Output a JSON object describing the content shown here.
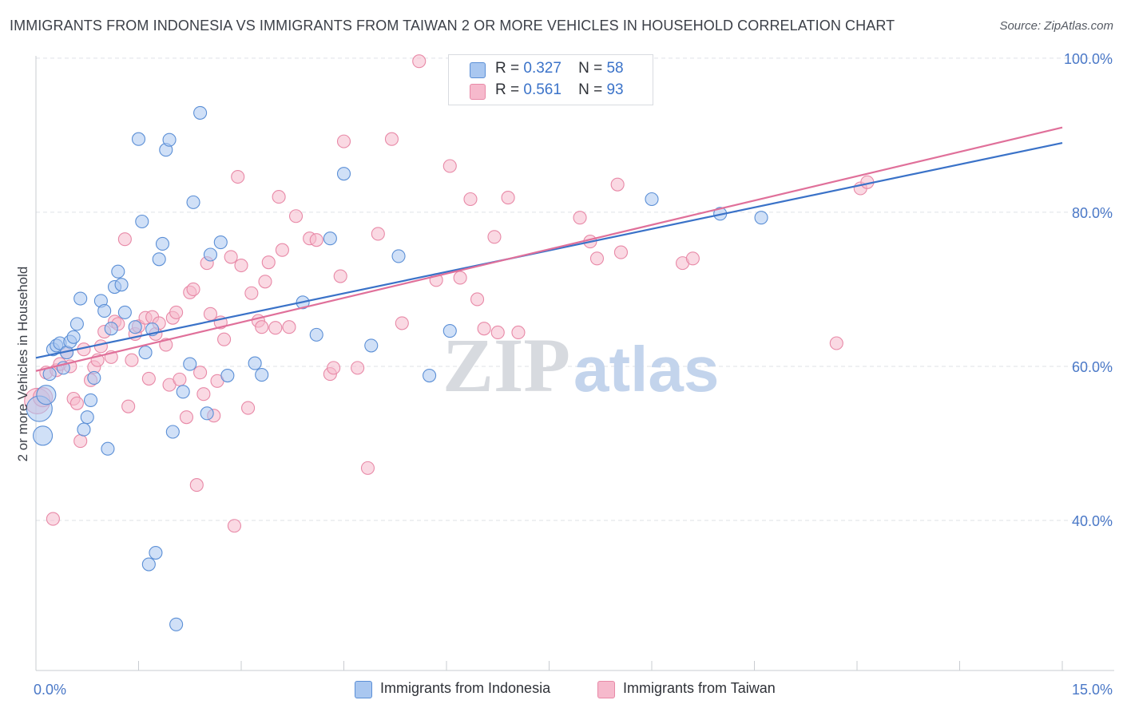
{
  "header": {
    "title": "IMMIGRANTS FROM INDONESIA VS IMMIGRANTS FROM TAIWAN 2 OR MORE VEHICLES IN HOUSEHOLD CORRELATION CHART",
    "source": "Source: ZipAtlas.com"
  },
  "legend": {
    "series1": {
      "r_label": "R =",
      "r_value": "0.327",
      "n_label": "N =",
      "n_value": "58"
    },
    "series2": {
      "r_label": "R =",
      "r_value": "0.561",
      "n_label": "N =",
      "n_value": "93"
    }
  },
  "bottom_legend": {
    "series1": "Immigrants from Indonesia",
    "series2": "Immigrants from Taiwan"
  },
  "watermark": {
    "zip": "ZIP",
    "atlas": "atlas"
  },
  "colors": {
    "indonesia_fill": "#a9c7f0",
    "indonesia_stroke": "#5b8fd6",
    "indonesia_line": "#3a72c8",
    "taiwan_fill": "#f6b9cc",
    "taiwan_stroke": "#e889a7",
    "taiwan_line": "#e0709a",
    "tick_text": "#4a78c7"
  },
  "chart_data": {
    "type": "scatter",
    "title": "IMMIGRANTS FROM INDONESIA VS IMMIGRANTS FROM TAIWAN 2 OR MORE VEHICLES IN HOUSEHOLD CORRELATION CHART",
    "xlabel": "",
    "ylabel": "2 or more Vehicles in Household",
    "xlim": [
      0,
      15
    ],
    "ylim": [
      20,
      102
    ],
    "x_tick_labels": [
      {
        "value": 0,
        "label": "0.0%"
      },
      {
        "value": 15,
        "label": "15.0%"
      }
    ],
    "y_tick_labels": [
      {
        "value": 100,
        "label": "100.0%"
      },
      {
        "value": 80,
        "label": "80.0%"
      },
      {
        "value": 60,
        "label": "60.0%"
      },
      {
        "value": 40,
        "label": "40.0%"
      }
    ],
    "grid": "horizontal dashed",
    "legend_position": "top-center",
    "series": [
      {
        "name": "Immigrants from Indonesia",
        "trend": {
          "x": [
            0,
            15
          ],
          "y": [
            61.1,
            89.0
          ]
        },
        "points": [
          {
            "x": 0.05,
            "y": 54.5,
            "s": "xl"
          },
          {
            "x": 0.1,
            "y": 51.0,
            "s": "l"
          },
          {
            "x": 0.15,
            "y": 56.3,
            "s": "l"
          },
          {
            "x": 0.2,
            "y": 59.0
          },
          {
            "x": 0.25,
            "y": 62.2
          },
          {
            "x": 0.3,
            "y": 62.7
          },
          {
            "x": 0.35,
            "y": 63.0
          },
          {
            "x": 0.4,
            "y": 59.8
          },
          {
            "x": 0.45,
            "y": 61.8
          },
          {
            "x": 0.5,
            "y": 63.2
          },
          {
            "x": 0.55,
            "y": 63.8
          },
          {
            "x": 0.6,
            "y": 65.5
          },
          {
            "x": 0.65,
            "y": 68.8
          },
          {
            "x": 0.7,
            "y": 51.8
          },
          {
            "x": 0.75,
            "y": 53.4
          },
          {
            "x": 0.8,
            "y": 55.6
          },
          {
            "x": 0.85,
            "y": 58.5
          },
          {
            "x": 0.95,
            "y": 68.5
          },
          {
            "x": 1.0,
            "y": 67.2
          },
          {
            "x": 1.05,
            "y": 49.3
          },
          {
            "x": 1.1,
            "y": 64.9
          },
          {
            "x": 1.15,
            "y": 70.3
          },
          {
            "x": 1.2,
            "y": 72.3
          },
          {
            "x": 1.25,
            "y": 70.6
          },
          {
            "x": 1.3,
            "y": 67.0
          },
          {
            "x": 1.45,
            "y": 65.1
          },
          {
            "x": 1.5,
            "y": 89.5
          },
          {
            "x": 1.55,
            "y": 78.8
          },
          {
            "x": 1.6,
            "y": 61.8
          },
          {
            "x": 1.65,
            "y": 34.3
          },
          {
            "x": 1.7,
            "y": 64.8
          },
          {
            "x": 1.75,
            "y": 35.8
          },
          {
            "x": 1.8,
            "y": 73.9
          },
          {
            "x": 1.85,
            "y": 75.9
          },
          {
            "x": 1.9,
            "y": 88.1
          },
          {
            "x": 1.95,
            "y": 89.4
          },
          {
            "x": 2.0,
            "y": 51.5
          },
          {
            "x": 2.05,
            "y": 26.5
          },
          {
            "x": 2.15,
            "y": 56.7
          },
          {
            "x": 2.25,
            "y": 60.3
          },
          {
            "x": 2.3,
            "y": 81.3
          },
          {
            "x": 2.4,
            "y": 92.9
          },
          {
            "x": 2.5,
            "y": 53.9
          },
          {
            "x": 2.55,
            "y": 74.5
          },
          {
            "x": 2.7,
            "y": 76.1
          },
          {
            "x": 2.8,
            "y": 58.8
          },
          {
            "x": 3.2,
            "y": 60.4
          },
          {
            "x": 3.3,
            "y": 58.9
          },
          {
            "x": 3.9,
            "y": 68.3
          },
          {
            "x": 4.1,
            "y": 64.1
          },
          {
            "x": 4.3,
            "y": 76.6
          },
          {
            "x": 4.5,
            "y": 85.0
          },
          {
            "x": 4.9,
            "y": 62.7
          },
          {
            "x": 5.3,
            "y": 74.3
          },
          {
            "x": 5.75,
            "y": 58.8
          },
          {
            "x": 6.05,
            "y": 64.6
          },
          {
            "x": 9.0,
            "y": 81.7
          },
          {
            "x": 10.0,
            "y": 79.8
          },
          {
            "x": 10.6,
            "y": 79.3
          }
        ]
      },
      {
        "name": "Immigrants from Taiwan",
        "trend": {
          "x": [
            0,
            15
          ],
          "y": [
            59.4,
            91.0
          ]
        },
        "points": [
          {
            "x": 0.02,
            "y": 55.5,
            "s": "xl"
          },
          {
            "x": 0.1,
            "y": 56.0,
            "s": "l"
          },
          {
            "x": 0.15,
            "y": 59.2
          },
          {
            "x": 0.25,
            "y": 40.2
          },
          {
            "x": 0.3,
            "y": 59.5
          },
          {
            "x": 0.35,
            "y": 60.3
          },
          {
            "x": 0.45,
            "y": 61.8
          },
          {
            "x": 0.5,
            "y": 60.0
          },
          {
            "x": 0.55,
            "y": 55.8
          },
          {
            "x": 0.6,
            "y": 55.2
          },
          {
            "x": 0.65,
            "y": 50.3
          },
          {
            "x": 0.7,
            "y": 62.2
          },
          {
            "x": 0.8,
            "y": 58.2
          },
          {
            "x": 0.85,
            "y": 59.9
          },
          {
            "x": 0.9,
            "y": 60.8
          },
          {
            "x": 0.95,
            "y": 62.6
          },
          {
            "x": 1.0,
            "y": 64.5
          },
          {
            "x": 1.1,
            "y": 61.2
          },
          {
            "x": 1.15,
            "y": 65.8
          },
          {
            "x": 1.2,
            "y": 65.5
          },
          {
            "x": 1.3,
            "y": 76.5
          },
          {
            "x": 1.35,
            "y": 54.8
          },
          {
            "x": 1.4,
            "y": 60.8
          },
          {
            "x": 1.45,
            "y": 64.2
          },
          {
            "x": 1.5,
            "y": 65.2
          },
          {
            "x": 1.6,
            "y": 66.3
          },
          {
            "x": 1.65,
            "y": 58.4
          },
          {
            "x": 1.7,
            "y": 66.4
          },
          {
            "x": 1.75,
            "y": 64.2
          },
          {
            "x": 1.8,
            "y": 65.6
          },
          {
            "x": 1.9,
            "y": 62.8
          },
          {
            "x": 1.95,
            "y": 57.6
          },
          {
            "x": 2.0,
            "y": 66.3
          },
          {
            "x": 2.05,
            "y": 67.0
          },
          {
            "x": 2.1,
            "y": 58.3
          },
          {
            "x": 2.2,
            "y": 53.4
          },
          {
            "x": 2.25,
            "y": 69.6
          },
          {
            "x": 2.3,
            "y": 70.0
          },
          {
            "x": 2.35,
            "y": 44.6
          },
          {
            "x": 2.4,
            "y": 59.2
          },
          {
            "x": 2.45,
            "y": 56.4
          },
          {
            "x": 2.5,
            "y": 73.4
          },
          {
            "x": 2.55,
            "y": 66.8
          },
          {
            "x": 2.6,
            "y": 53.6
          },
          {
            "x": 2.65,
            "y": 58.1
          },
          {
            "x": 2.7,
            "y": 65.7
          },
          {
            "x": 2.75,
            "y": 63.5
          },
          {
            "x": 2.85,
            "y": 74.2
          },
          {
            "x": 2.9,
            "y": 39.3
          },
          {
            "x": 2.95,
            "y": 84.6
          },
          {
            "x": 3.0,
            "y": 73.1
          },
          {
            "x": 3.1,
            "y": 54.6
          },
          {
            "x": 3.15,
            "y": 69.5
          },
          {
            "x": 3.25,
            "y": 65.9
          },
          {
            "x": 3.3,
            "y": 65.1
          },
          {
            "x": 3.35,
            "y": 71.0
          },
          {
            "x": 3.4,
            "y": 73.5
          },
          {
            "x": 3.5,
            "y": 65.0
          },
          {
            "x": 3.55,
            "y": 82.0
          },
          {
            "x": 3.6,
            "y": 75.1
          },
          {
            "x": 3.7,
            "y": 65.1
          },
          {
            "x": 3.8,
            "y": 79.5
          },
          {
            "x": 4.0,
            "y": 76.6
          },
          {
            "x": 4.1,
            "y": 76.4
          },
          {
            "x": 4.3,
            "y": 59.0
          },
          {
            "x": 4.35,
            "y": 59.8
          },
          {
            "x": 4.45,
            "y": 71.7
          },
          {
            "x": 4.5,
            "y": 89.2
          },
          {
            "x": 4.7,
            "y": 59.8
          },
          {
            "x": 4.85,
            "y": 46.8
          },
          {
            "x": 5.0,
            "y": 77.2
          },
          {
            "x": 5.2,
            "y": 89.5
          },
          {
            "x": 5.35,
            "y": 65.6
          },
          {
            "x": 5.6,
            "y": 99.6
          },
          {
            "x": 5.85,
            "y": 71.2
          },
          {
            "x": 6.05,
            "y": 86.0
          },
          {
            "x": 6.2,
            "y": 71.5
          },
          {
            "x": 6.35,
            "y": 81.7
          },
          {
            "x": 6.45,
            "y": 68.7
          },
          {
            "x": 6.55,
            "y": 64.9
          },
          {
            "x": 6.7,
            "y": 76.8
          },
          {
            "x": 6.75,
            "y": 64.4
          },
          {
            "x": 6.9,
            "y": 81.9
          },
          {
            "x": 7.05,
            "y": 64.4
          },
          {
            "x": 7.95,
            "y": 79.3
          },
          {
            "x": 8.1,
            "y": 76.2
          },
          {
            "x": 8.2,
            "y": 74.0
          },
          {
            "x": 8.5,
            "y": 83.6
          },
          {
            "x": 8.55,
            "y": 74.8
          },
          {
            "x": 9.45,
            "y": 73.4
          },
          {
            "x": 9.6,
            "y": 74.0
          },
          {
            "x": 11.7,
            "y": 63.0
          },
          {
            "x": 12.05,
            "y": 83.1
          },
          {
            "x": 12.15,
            "y": 83.9
          }
        ]
      }
    ]
  }
}
